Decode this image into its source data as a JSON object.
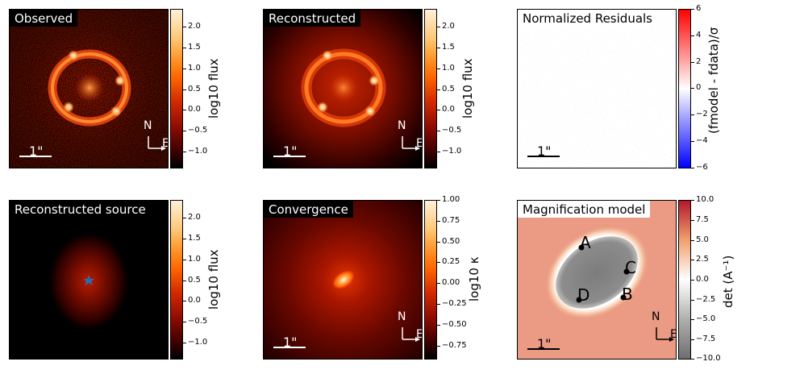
{
  "panels": {
    "observed": {
      "title": "Observed",
      "cbar_label": "log10 flux",
      "ticks": [
        "2.0",
        "1.5",
        "1.0",
        "0.5",
        "0.0",
        "−0.5",
        "−1.0"
      ],
      "scale": "1\"",
      "north": "N",
      "east": "E"
    },
    "reconstructed": {
      "title": "Reconstructed",
      "cbar_label": "log10 flux",
      "ticks": [
        "2.0",
        "1.5",
        "1.0",
        "0.5",
        "0.0",
        "−0.5",
        "−1.0"
      ],
      "scale": "1\"",
      "north": "N",
      "east": "E"
    },
    "residuals": {
      "title": "Normalized Residuals",
      "cbar_label": "(fmodel - fdata)/σ",
      "ticks": [
        "6",
        "4",
        "2",
        "0",
        "−2",
        "−4",
        "−6"
      ],
      "scale": "1\""
    },
    "source": {
      "title": "Reconstructed source",
      "cbar_label": "log10 flux",
      "ticks": [
        "2.0",
        "1.5",
        "1.0",
        "0.5",
        "0.0",
        "−0.5",
        "−1.0"
      ]
    },
    "convergence": {
      "title": "Convergence",
      "cbar_label": "log10 κ",
      "ticks": [
        "1.00",
        "0.75",
        "0.50",
        "0.25",
        "0.00",
        "−0.25",
        "−0.50",
        "−0.75"
      ],
      "scale": "1\"",
      "north": "N",
      "east": "E"
    },
    "magnification": {
      "title": "Magnification model",
      "cbar_label": "det (A⁻¹)",
      "ticks": [
        "10.0",
        "7.5",
        "5.0",
        "2.5",
        "0.0",
        "−2.5",
        "−5.0",
        "−7.5",
        "−10.0"
      ],
      "scale": "1\"",
      "north": "N",
      "east": "E",
      "image_labels": [
        "A",
        "B",
        "C",
        "D"
      ]
    }
  },
  "chart_data": [
    {
      "type": "heatmap",
      "title": "Observed",
      "colorbar_label": "log10 flux",
      "colorbar_range": [
        -1.3,
        2.35
      ],
      "colormap": "gist_heat"
    },
    {
      "type": "heatmap",
      "title": "Reconstructed",
      "colorbar_label": "log10 flux",
      "colorbar_range": [
        -1.3,
        2.35
      ],
      "colormap": "gist_heat"
    },
    {
      "type": "heatmap",
      "title": "Normalized Residuals",
      "colorbar_label": "(f_model - f_data)/σ",
      "colorbar_range": [
        -6,
        6
      ],
      "colormap": "bwr"
    },
    {
      "type": "heatmap",
      "title": "Reconstructed source",
      "colorbar_label": "log10 flux",
      "colorbar_range": [
        -1.3,
        2.35
      ],
      "colormap": "gist_heat"
    },
    {
      "type": "heatmap",
      "title": "Convergence",
      "colorbar_label": "log10 κ",
      "colorbar_range": [
        -0.9,
        1.0
      ],
      "colormap": "gist_heat"
    },
    {
      "type": "heatmap",
      "title": "Magnification model",
      "colorbar_label": "det (A^-1)",
      "colorbar_range": [
        -10,
        10
      ],
      "colormap": "RdGy",
      "points": [
        "A",
        "B",
        "C",
        "D"
      ]
    }
  ]
}
